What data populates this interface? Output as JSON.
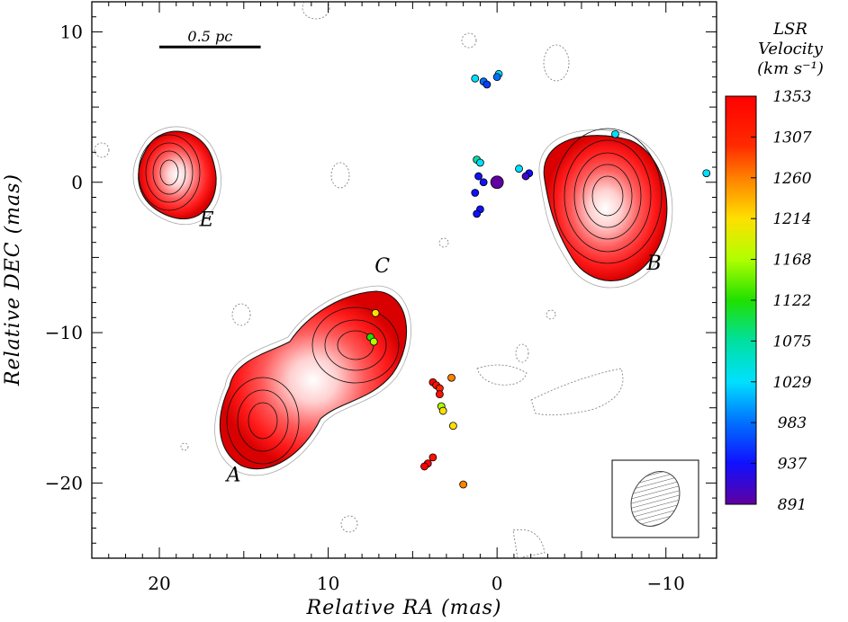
{
  "chart_data": {
    "type": "scatter",
    "title": "",
    "xlabel": "Relative RA (mas)",
    "ylabel": "Relative DEC (mas)",
    "xlim": [
      24,
      -13
    ],
    "ylim": [
      -25,
      12
    ],
    "x_reversed": true,
    "xticks": [
      20,
      10,
      0,
      -10
    ],
    "yticks": [
      10,
      0,
      -10,
      -20
    ],
    "xtick_labels": [
      "20",
      "10",
      "0",
      "−10"
    ],
    "ytick_labels": [
      "10",
      "0",
      "−10",
      "−20"
    ],
    "scale_bar": {
      "label": "0.5 pc",
      "x_start": 20,
      "x_end": 14,
      "y": 9
    },
    "beam": "hatched-ellipse-inset-bottom-right",
    "components": [
      {
        "name": "A",
        "ra": 14.0,
        "dec": -16.0,
        "label_ra": 15.6,
        "label_dec": -19.9
      },
      {
        "name": "B",
        "ra": -6.4,
        "dec": -1.0,
        "label_ra": -9.3,
        "label_dec": -5.8
      },
      {
        "name": "C",
        "ra": 7.6,
        "dec": -11.0,
        "label_ra": 6.8,
        "label_dec": -6.0
      },
      {
        "name": "E",
        "ra": 19.2,
        "dec": 0.4,
        "label_ra": 17.2,
        "label_dec": -2.9
      }
    ],
    "colorbar": {
      "title": [
        "LSR",
        "Velocity",
        "(km s⁻¹)"
      ],
      "ticks": [
        1353,
        1307,
        1260,
        1214,
        1168,
        1122,
        1075,
        1029,
        983,
        937,
        891
      ],
      "tick_labels": [
        "1353",
        "1307",
        "1260",
        "1214",
        "1168",
        "1122",
        "1075",
        "1029",
        "983",
        "937",
        "891"
      ],
      "min": 891,
      "max": 1353,
      "colormap": "rainbow"
    },
    "series": [
      {
        "points": [
          {
            "ra": 1.3,
            "dec": 6.9,
            "v": 1029
          },
          {
            "ra": 0.8,
            "dec": 6.7,
            "v": 983
          },
          {
            "ra": 0.6,
            "dec": 6.5,
            "v": 960
          },
          {
            "ra": -0.1,
            "dec": 7.2,
            "v": 1029
          },
          {
            "ra": 0.0,
            "dec": 7.0,
            "v": 983
          },
          {
            "ra": 1.2,
            "dec": 1.5,
            "v": 1075
          },
          {
            "ra": 1.0,
            "dec": 1.3,
            "v": 1029
          },
          {
            "ra": 1.1,
            "dec": 0.4,
            "v": 937
          },
          {
            "ra": 0.8,
            "dec": 0.0,
            "v": 937
          },
          {
            "ra": 0.0,
            "dec": 0.0,
            "v": 891
          },
          {
            "ra": 1.3,
            "dec": -0.7,
            "v": 937
          },
          {
            "ra": -1.3,
            "dec": 0.9,
            "v": 1029
          },
          {
            "ra": -1.9,
            "dec": 0.6,
            "v": 937
          },
          {
            "ra": -1.7,
            "dec": 0.4,
            "v": 914
          },
          {
            "ra": 1.0,
            "dec": -1.8,
            "v": 937
          },
          {
            "ra": 1.2,
            "dec": -2.1,
            "v": 937
          },
          {
            "ra": -7.0,
            "dec": 3.2,
            "v": 1029
          },
          {
            "ra": -12.4,
            "dec": 0.6,
            "v": 1029
          },
          {
            "ra": 7.2,
            "dec": -8.7,
            "v": 1214
          },
          {
            "ra": 7.5,
            "dec": -10.3,
            "v": 1122
          },
          {
            "ra": 7.3,
            "dec": -10.6,
            "v": 1168
          },
          {
            "ra": 3.8,
            "dec": -13.3,
            "v": 1353
          },
          {
            "ra": 3.6,
            "dec": -13.5,
            "v": 1330
          },
          {
            "ra": 3.4,
            "dec": -13.7,
            "v": 1307
          },
          {
            "ra": 2.7,
            "dec": -13.0,
            "v": 1260
          },
          {
            "ra": 3.4,
            "dec": -14.1,
            "v": 1330
          },
          {
            "ra": 3.3,
            "dec": -14.9,
            "v": 1168
          },
          {
            "ra": 3.2,
            "dec": -15.2,
            "v": 1214
          },
          {
            "ra": 2.6,
            "dec": -16.2,
            "v": 1214
          },
          {
            "ra": 3.8,
            "dec": -18.3,
            "v": 1330
          },
          {
            "ra": 4.1,
            "dec": -18.7,
            "v": 1353
          },
          {
            "ra": 4.3,
            "dec": -18.9,
            "v": 1353
          },
          {
            "ra": 2.0,
            "dec": -20.1,
            "v": 1260
          }
        ]
      }
    ]
  }
}
